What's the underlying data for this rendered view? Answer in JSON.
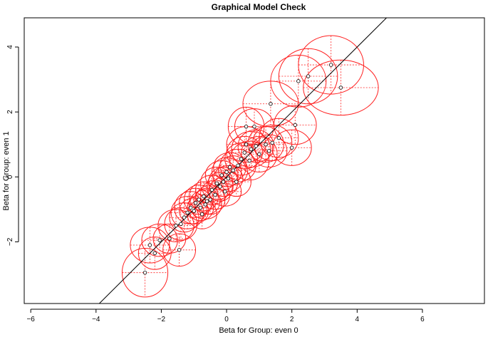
{
  "chart_data": {
    "type": "scatter",
    "title": "Graphical Model Check",
    "xlabel": "Beta for Group: even 0",
    "ylabel": "Beta for Group: even 1",
    "xlim": [
      -6.2,
      7.9
    ],
    "ylim": [
      -3.9,
      4.9
    ],
    "xticks": [
      -6,
      -4,
      -2,
      0,
      2,
      4,
      6
    ],
    "yticks": [
      -2,
      0,
      2,
      4
    ],
    "grid": false,
    "reference_line": {
      "slope": 1,
      "intercept": 0
    },
    "colors": {
      "ellipse": "#ff2020",
      "point": "#000000",
      "line": "#000000"
    },
    "points": [
      {
        "x": -2.5,
        "y": -2.95,
        "rx": 0.7,
        "ry": 0.75
      },
      {
        "x": -2.35,
        "y": -2.1,
        "rx": 0.6,
        "ry": 0.55
      },
      {
        "x": -2.2,
        "y": -2.35,
        "rx": 0.5,
        "ry": 0.5
      },
      {
        "x": -2.05,
        "y": -1.95,
        "rx": 0.55,
        "ry": 0.5
      },
      {
        "x": -1.75,
        "y": -1.9,
        "rx": 0.5,
        "ry": 0.45
      },
      {
        "x": -1.45,
        "y": -2.25,
        "rx": 0.5,
        "ry": 0.5
      },
      {
        "x": -1.55,
        "y": -1.5,
        "rx": 0.55,
        "ry": 0.5
      },
      {
        "x": -1.4,
        "y": -1.45,
        "rx": 0.5,
        "ry": 0.5
      },
      {
        "x": -1.3,
        "y": -1.25,
        "rx": 0.45,
        "ry": 0.45
      },
      {
        "x": -1.2,
        "y": -1.1,
        "rx": 0.5,
        "ry": 0.5
      },
      {
        "x": -1.1,
        "y": -0.95,
        "rx": 0.5,
        "ry": 0.5
      },
      {
        "x": -1.0,
        "y": -1.05,
        "rx": 0.45,
        "ry": 0.4
      },
      {
        "x": -0.95,
        "y": -0.8,
        "rx": 0.5,
        "ry": 0.45
      },
      {
        "x": -0.85,
        "y": -0.7,
        "rx": 0.45,
        "ry": 0.45
      },
      {
        "x": -0.8,
        "y": -0.95,
        "rx": 0.4,
        "ry": 0.4
      },
      {
        "x": -0.75,
        "y": -1.15,
        "rx": 0.45,
        "ry": 0.45
      },
      {
        "x": -0.7,
        "y": -0.6,
        "rx": 0.45,
        "ry": 0.45
      },
      {
        "x": -0.65,
        "y": -0.85,
        "rx": 0.5,
        "ry": 0.45
      },
      {
        "x": -0.6,
        "y": -0.75,
        "rx": 0.4,
        "ry": 0.4
      },
      {
        "x": -0.5,
        "y": -0.7,
        "rx": 0.45,
        "ry": 0.45
      },
      {
        "x": -0.45,
        "y": -0.4,
        "rx": 0.5,
        "ry": 0.45
      },
      {
        "x": -0.35,
        "y": -0.55,
        "rx": 0.45,
        "ry": 0.45
      },
      {
        "x": -0.3,
        "y": -0.2,
        "rx": 0.5,
        "ry": 0.5
      },
      {
        "x": -0.2,
        "y": -0.3,
        "rx": 0.4,
        "ry": 0.45
      },
      {
        "x": -0.15,
        "y": 0.05,
        "rx": 0.5,
        "ry": 0.45
      },
      {
        "x": -0.1,
        "y": -0.15,
        "rx": 0.45,
        "ry": 0.45
      },
      {
        "x": -0.05,
        "y": -0.45,
        "rx": 0.5,
        "ry": 0.45
      },
      {
        "x": 0.0,
        "y": 0.15,
        "rx": 0.45,
        "ry": 0.45
      },
      {
        "x": 0.05,
        "y": -0.05,
        "rx": 0.45,
        "ry": 0.4
      },
      {
        "x": 0.1,
        "y": 0.3,
        "rx": 0.5,
        "ry": 0.45
      },
      {
        "x": 0.2,
        "y": 0.2,
        "rx": 0.45,
        "ry": 0.45
      },
      {
        "x": 0.3,
        "y": -0.15,
        "rx": 0.45,
        "ry": 0.45
      },
      {
        "x": 0.35,
        "y": 0.35,
        "rx": 0.55,
        "ry": 0.5
      },
      {
        "x": 0.45,
        "y": 0.55,
        "rx": 0.5,
        "ry": 0.5
      },
      {
        "x": 0.55,
        "y": 0.75,
        "rx": 0.55,
        "ry": 0.5
      },
      {
        "x": 0.6,
        "y": 1.0,
        "rx": 0.6,
        "ry": 0.55
      },
      {
        "x": 0.7,
        "y": 0.5,
        "rx": 0.6,
        "ry": 0.6
      },
      {
        "x": 0.75,
        "y": 0.85,
        "rx": 0.6,
        "ry": 0.55
      },
      {
        "x": 0.85,
        "y": 1.55,
        "rx": 0.6,
        "ry": 0.55
      },
      {
        "x": 0.9,
        "y": 0.95,
        "rx": 0.55,
        "ry": 0.5
      },
      {
        "x": 0.6,
        "y": 1.55,
        "rx": 0.55,
        "ry": 0.6
      },
      {
        "x": 1.0,
        "y": 0.7,
        "rx": 0.55,
        "ry": 0.55
      },
      {
        "x": 1.2,
        "y": 1.0,
        "rx": 0.55,
        "ry": 0.55
      },
      {
        "x": 1.3,
        "y": 0.8,
        "rx": 0.55,
        "ry": 0.5
      },
      {
        "x": 1.4,
        "y": 1.05,
        "rx": 0.6,
        "ry": 0.55
      },
      {
        "x": 1.35,
        "y": 2.25,
        "rx": 0.85,
        "ry": 0.7
      },
      {
        "x": 1.6,
        "y": 1.2,
        "rx": 0.6,
        "ry": 0.6
      },
      {
        "x": 2.0,
        "y": 0.9,
        "rx": 0.6,
        "ry": 0.55
      },
      {
        "x": 2.1,
        "y": 1.6,
        "rx": 0.65,
        "ry": 0.6
      },
      {
        "x": 2.2,
        "y": 2.95,
        "rx": 0.85,
        "ry": 0.8
      },
      {
        "x": 2.5,
        "y": 3.1,
        "rx": 0.9,
        "ry": 0.85
      },
      {
        "x": 3.2,
        "y": 3.45,
        "rx": 1.0,
        "ry": 0.9
      },
      {
        "x": 3.5,
        "y": 2.75,
        "rx": 1.15,
        "ry": 0.85
      }
    ]
  }
}
